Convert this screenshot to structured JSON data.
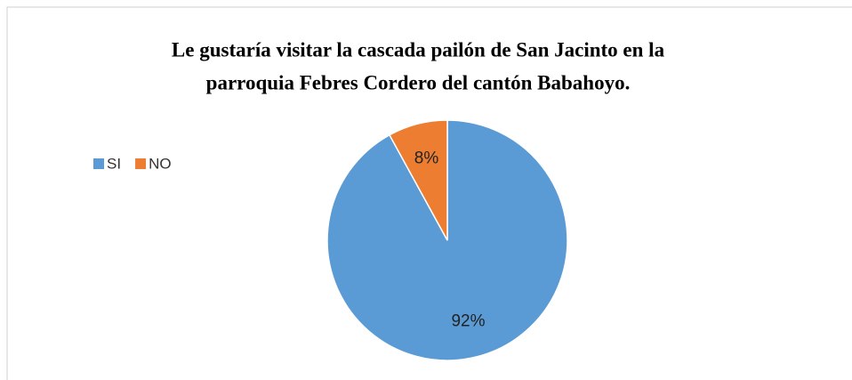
{
  "chart_data": {
    "type": "pie",
    "title": [
      "Le gustaría visitar la cascada pailón de San Jacinto en la",
      "parroquia Febres Cordero del cantón Babahoyo."
    ],
    "categories": [
      "SI",
      "NO"
    ],
    "values": [
      92,
      8
    ],
    "value_labels": [
      "92%",
      "8%"
    ],
    "colors": [
      "#5b9bd5",
      "#ed7d31"
    ],
    "legend": "left"
  }
}
